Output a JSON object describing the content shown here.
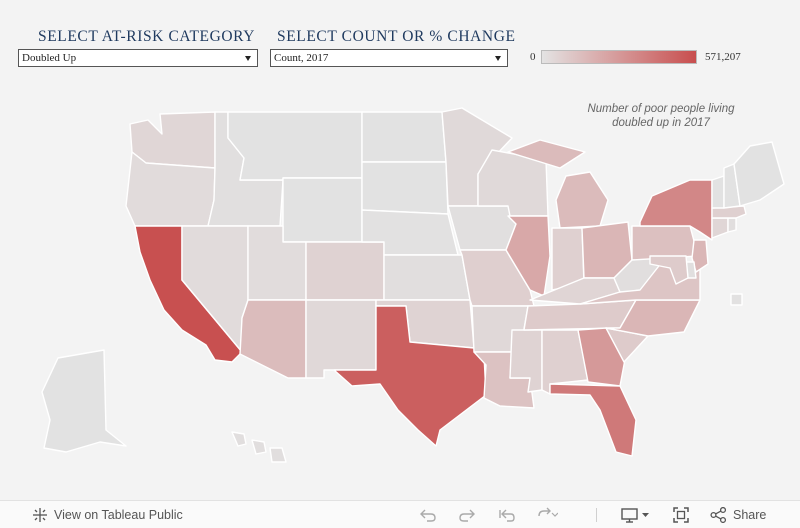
{
  "filters": {
    "category": {
      "title": "SELECT AT-RISK CATEGORY",
      "selected": "Doubled Up"
    },
    "measure": {
      "title": "SELECT COUNT OR % CHANGE",
      "selected": "Count, 2017"
    }
  },
  "legend": {
    "min_label": "0",
    "max_label": "571,207",
    "min_color": "#e3e3e3",
    "max_color": "#c84e4e"
  },
  "map_note": "Number of poor people living doubled up in 2017",
  "colors": {
    "background": "#f3f3f3",
    "state_border": "#ffffff",
    "low": "#e2e2e2",
    "high": "#c85050"
  },
  "regions": [
    {
      "code": "WA",
      "intensity": 0.08
    },
    {
      "code": "OR",
      "intensity": 0.05
    },
    {
      "code": "CA",
      "intensity": 1.0
    },
    {
      "code": "ID",
      "intensity": 0.02
    },
    {
      "code": "NV",
      "intensity": 0.05
    },
    {
      "code": "MT",
      "intensity": 0.0
    },
    {
      "code": "WY",
      "intensity": 0.0
    },
    {
      "code": "UT",
      "intensity": 0.04
    },
    {
      "code": "AZ",
      "intensity": 0.26
    },
    {
      "code": "CO",
      "intensity": 0.11
    },
    {
      "code": "NM",
      "intensity": 0.07
    },
    {
      "code": "ND",
      "intensity": 0.0
    },
    {
      "code": "SD",
      "intensity": 0.0
    },
    {
      "code": "NE",
      "intensity": 0.01
    },
    {
      "code": "KS",
      "intensity": 0.03
    },
    {
      "code": "OK",
      "intensity": 0.1
    },
    {
      "code": "TX",
      "intensity": 0.9
    },
    {
      "code": "MN",
      "intensity": 0.06
    },
    {
      "code": "IA",
      "intensity": 0.02
    },
    {
      "code": "MO",
      "intensity": 0.13
    },
    {
      "code": "AR",
      "intensity": 0.07
    },
    {
      "code": "LA",
      "intensity": 0.22
    },
    {
      "code": "WI",
      "intensity": 0.06
    },
    {
      "code": "IL",
      "intensity": 0.4
    },
    {
      "code": "MS",
      "intensity": 0.1
    },
    {
      "code": "MI",
      "intensity": 0.27
    },
    {
      "code": "IN",
      "intensity": 0.12
    },
    {
      "code": "OH",
      "intensity": 0.3
    },
    {
      "code": "KY",
      "intensity": 0.09
    },
    {
      "code": "TN",
      "intensity": 0.16
    },
    {
      "code": "AL",
      "intensity": 0.12
    },
    {
      "code": "GA",
      "intensity": 0.5
    },
    {
      "code": "FL",
      "intensity": 0.72
    },
    {
      "code": "SC",
      "intensity": 0.16
    },
    {
      "code": "NC",
      "intensity": 0.3
    },
    {
      "code": "VA",
      "intensity": 0.2
    },
    {
      "code": "WV",
      "intensity": 0.03
    },
    {
      "code": "PA",
      "intensity": 0.23
    },
    {
      "code": "NY",
      "intensity": 0.62
    },
    {
      "code": "NJ",
      "intensity": 0.3
    },
    {
      "code": "DE",
      "intensity": 0.02
    },
    {
      "code": "MD",
      "intensity": 0.16
    },
    {
      "code": "CT",
      "intensity": 0.08
    },
    {
      "code": "RI",
      "intensity": 0.03
    },
    {
      "code": "MA",
      "intensity": 0.12
    },
    {
      "code": "VT",
      "intensity": 0.0
    },
    {
      "code": "NH",
      "intensity": 0.0
    },
    {
      "code": "ME",
      "intensity": 0.0
    },
    {
      "code": "AK",
      "intensity": 0.0
    },
    {
      "code": "HI",
      "intensity": 0.03
    },
    {
      "code": "DC",
      "intensity": 0.01
    }
  ],
  "toolbar": {
    "view_label": "View on Tableau Public",
    "share_label": "Share"
  },
  "icons": {
    "tableau": "tableau-logo-icon",
    "undo": "undo-icon",
    "redo": "redo-icon",
    "revert": "revert-icon",
    "refresh": "refresh-icon",
    "download": "download-icon",
    "fullscreen": "fullscreen-icon",
    "share": "share-icon"
  }
}
